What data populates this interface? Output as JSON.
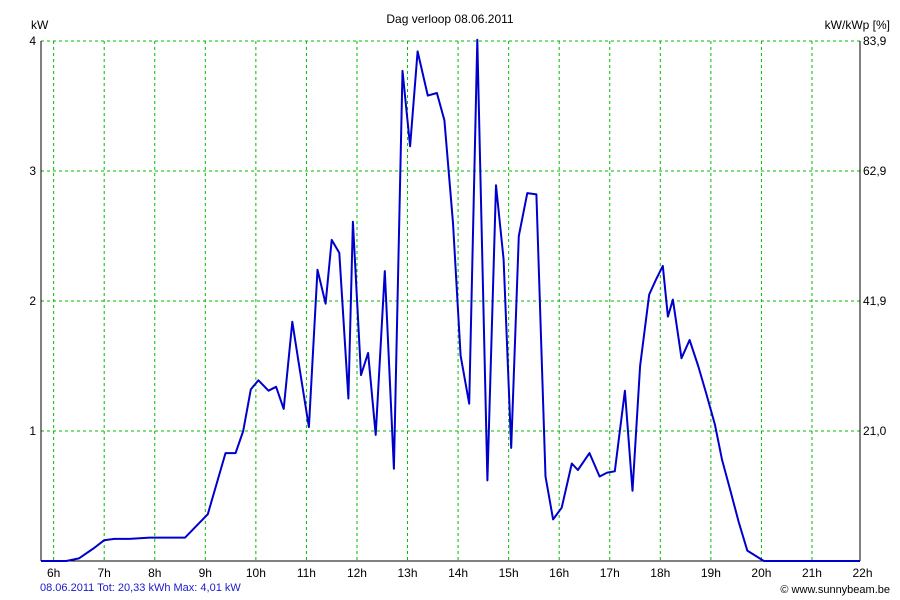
{
  "chart_data": {
    "type": "line",
    "title": "Dag  verloop 08.06.2011",
    "ylabel": "kW",
    "ylabel_right": "kW/kWp [%]",
    "xlim": [
      5.75,
      21.95
    ],
    "ylim": [
      0,
      4
    ],
    "x_ticks": [
      6,
      7,
      8,
      9,
      10,
      11,
      12,
      13,
      14,
      15,
      16,
      17,
      18,
      19,
      20,
      21,
      22
    ],
    "x_tick_labels": [
      "6h",
      "7h",
      "8h",
      "9h",
      "10h",
      "11h",
      "12h",
      "13h",
      "14h",
      "15h",
      "16h",
      "17h",
      "18h",
      "19h",
      "20h",
      "21h",
      "22h"
    ],
    "y_ticks": [
      1,
      2,
      3,
      4
    ],
    "y_tick_labels": [
      "1",
      "2",
      "3",
      "4"
    ],
    "y_right_ticks": [
      1,
      2,
      3,
      4
    ],
    "y_right_tick_labels": [
      "21,0",
      "41,9",
      "62,9",
      "83,9"
    ],
    "grid": true,
    "line_color": "#0000cc",
    "grid_color": "#00bb00",
    "series": [
      {
        "x": [
          5.75,
          6.25,
          6.5,
          6.8,
          7.0,
          7.2,
          7.5,
          7.9,
          8.25,
          8.6,
          9.05,
          9.4,
          9.6,
          9.75,
          9.9,
          10.05,
          10.25,
          10.4,
          10.55,
          10.72,
          10.87,
          11.05,
          11.22,
          11.38,
          11.5,
          11.65,
          11.83,
          11.92,
          12.08,
          12.22,
          12.37,
          12.55,
          12.73,
          12.9,
          13.05,
          13.2,
          13.4,
          13.58,
          13.73,
          13.9,
          14.05,
          14.22,
          14.38,
          14.58,
          14.75,
          14.9,
          15.05,
          15.2,
          15.37,
          15.55,
          15.73,
          15.88,
          16.05,
          16.25,
          16.37,
          16.6,
          16.8,
          16.95,
          17.1,
          17.3,
          17.45,
          17.6,
          17.78,
          17.92,
          18.05,
          18.15,
          18.25,
          18.42,
          18.58,
          18.75,
          18.9,
          19.08,
          19.22,
          19.38,
          19.55,
          19.72,
          20.05,
          20.4,
          20.75,
          21.05,
          21.45,
          21.72,
          21.95
        ],
        "y": [
          0.0,
          0.0,
          0.02,
          0.1,
          0.16,
          0.17,
          0.17,
          0.18,
          0.18,
          0.18,
          0.36,
          0.83,
          0.83,
          1.0,
          1.32,
          1.39,
          1.31,
          1.34,
          1.17,
          1.84,
          1.47,
          1.03,
          2.24,
          1.98,
          2.47,
          2.37,
          1.25,
          2.61,
          1.43,
          1.6,
          0.97,
          2.23,
          0.71,
          3.77,
          3.19,
          3.92,
          3.58,
          3.6,
          3.39,
          2.6,
          1.58,
          1.21,
          4.01,
          0.62,
          2.89,
          2.32,
          0.87,
          2.5,
          2.83,
          2.82,
          0.65,
          0.32,
          0.41,
          0.75,
          0.7,
          0.83,
          0.65,
          0.68,
          0.69,
          1.31,
          0.54,
          1.5,
          2.05,
          2.17,
          2.27,
          1.88,
          2.01,
          1.56,
          1.7,
          1.5,
          1.3,
          1.05,
          0.78,
          0.55,
          0.3,
          0.08,
          0.0,
          0.0,
          0.0,
          0.0,
          0.0,
          0.0,
          0.0
        ]
      }
    ],
    "footer_left": "08.06.2011 Tot: 20,33 kWh Max: 4,01 kW",
    "footer_right": "© www.sunnybeam.be"
  }
}
